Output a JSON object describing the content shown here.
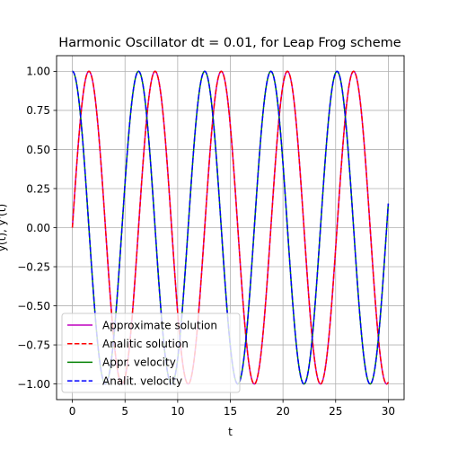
{
  "chart_data": {
    "type": "line",
    "title": "Harmonic Oscillator dt = 0.01, for Leap Frog scheme",
    "xlabel": "t",
    "ylabel": "y(t), y'(t)",
    "xlim": [
      -1.5,
      31.5
    ],
    "ylim": [
      -1.1,
      1.1
    ],
    "xticks": [
      0,
      5,
      10,
      15,
      20,
      25,
      30
    ],
    "yticks": [
      -1.0,
      -0.75,
      -0.5,
      -0.25,
      0.0,
      0.25,
      0.5,
      0.75,
      1.0
    ],
    "ytick_labels": [
      "−1.00",
      "−0.75",
      "−0.50",
      "−0.25",
      "0.00",
      "0.25",
      "0.50",
      "0.75",
      "1.00"
    ],
    "grid": true,
    "legend_location": "lower-left",
    "t_range": [
      0,
      30
    ],
    "series": [
      {
        "name": "Approximate solution",
        "function": "sin(t)",
        "color": "#bf00bf",
        "dash": "solid"
      },
      {
        "name": "Analitic solution",
        "function": "sin(t)",
        "color": "#ff0000",
        "dash": "dashed"
      },
      {
        "name": "Appr. velocity",
        "function": "cos(t)",
        "color": "#008000",
        "dash": "solid"
      },
      {
        "name": "Analit. velocity",
        "function": "cos(t)",
        "color": "#0000ff",
        "dash": "dashed"
      }
    ]
  }
}
